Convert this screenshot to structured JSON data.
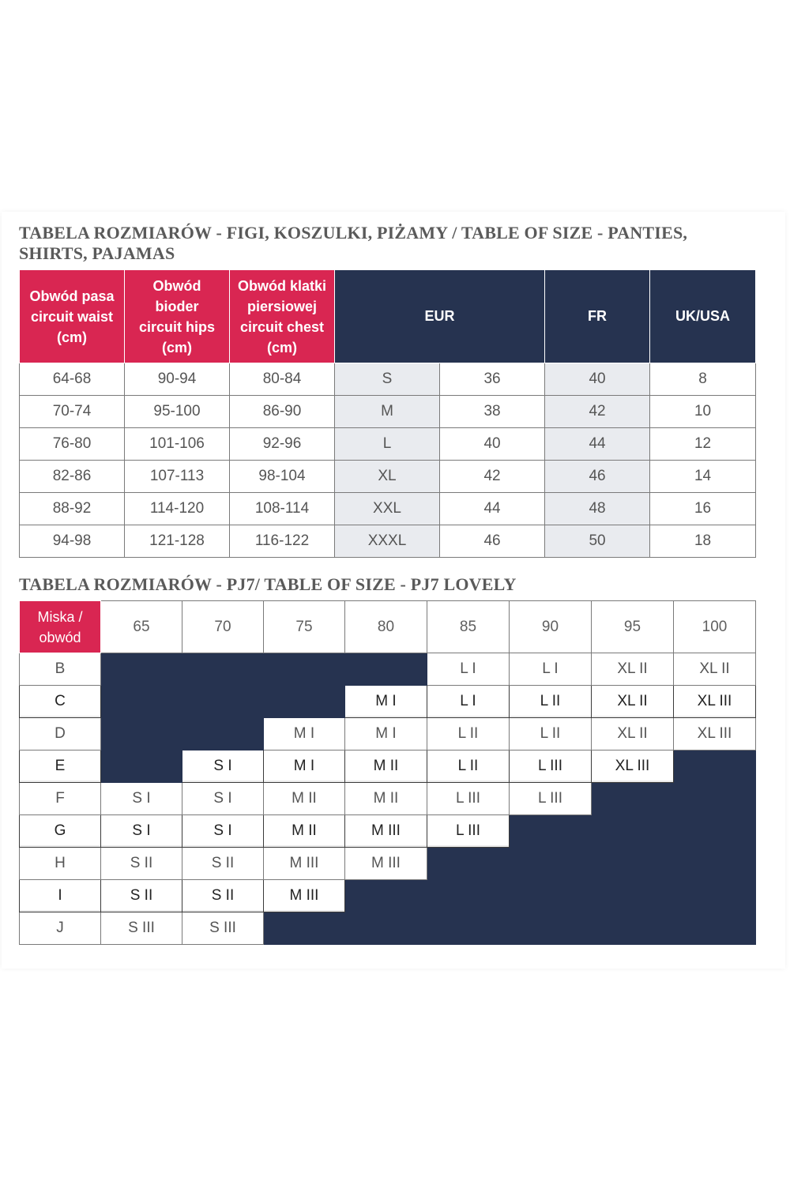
{
  "table1": {
    "title": "TABELA ROZMIARÓW - FIGI, KOSZULKI, PIŻAMY / TABLE OF SIZE - PANTIES, SHIRTS, PAJAMAS",
    "headers": {
      "waist": [
        "Obwód pasa",
        "circuit waist",
        "(cm)"
      ],
      "hips": [
        "Obwód",
        "bioder",
        "circuit hips",
        "(cm)"
      ],
      "chest": [
        "Obwód klatki",
        "piersiowej",
        "circuit chest",
        "(cm)"
      ],
      "eur": "EUR",
      "fr": "FR",
      "ukusa": "UK/USA"
    },
    "rows": [
      [
        "64-68",
        "90-94",
        "80-84",
        "S",
        "36",
        "40",
        "8"
      ],
      [
        "70-74",
        "95-100",
        "86-90",
        "M",
        "38",
        "42",
        "10"
      ],
      [
        "76-80",
        "101-106",
        "92-96",
        "L",
        "40",
        "44",
        "12"
      ],
      [
        "82-86",
        "107-113",
        "98-104",
        "XL",
        "42",
        "46",
        "14"
      ],
      [
        "88-92",
        "114-120",
        "108-114",
        "XXL",
        "44",
        "48",
        "16"
      ],
      [
        "94-98",
        "121-128",
        "116-122",
        "XXXL",
        "46",
        "50",
        "18"
      ]
    ]
  },
  "table2": {
    "title": "TABELA ROZMIARÓW - PJ7/ TABLE OF SIZE - PJ7 LOVELY",
    "corner": [
      "Miska /",
      "obwód"
    ],
    "columns": [
      "65",
      "70",
      "75",
      "80",
      "85",
      "90",
      "95",
      "100"
    ],
    "rows": [
      {
        "label": "B",
        "cells": [
          null,
          null,
          null,
          null,
          "L I",
          "L I",
          "XL II",
          "XL II"
        ]
      },
      {
        "label": "C",
        "cells": [
          null,
          null,
          null,
          "M I",
          "L I",
          "L II",
          "XL II",
          "XL III"
        ]
      },
      {
        "label": "D",
        "cells": [
          null,
          null,
          "M I",
          "M I",
          "L II",
          "L II",
          "XL II",
          "XL III"
        ]
      },
      {
        "label": "E",
        "cells": [
          null,
          "S I",
          "M I",
          "M II",
          "L II",
          "L III",
          "XL III",
          null
        ]
      },
      {
        "label": "F",
        "cells": [
          "S I",
          "S I",
          "M II",
          "M II",
          "L III",
          "L III",
          null,
          null
        ]
      },
      {
        "label": "G",
        "cells": [
          "S I",
          "S I",
          "M II",
          "M III",
          "L III",
          null,
          null,
          null
        ]
      },
      {
        "label": "H",
        "cells": [
          "S II",
          "S II",
          "M III",
          "M III",
          null,
          null,
          null,
          null
        ]
      },
      {
        "label": "I",
        "cells": [
          "S II",
          "S II",
          "M III",
          null,
          null,
          null,
          null,
          null
        ]
      },
      {
        "label": "J",
        "cells": [
          "S III",
          "S III",
          null,
          null,
          null,
          null,
          null,
          null
        ]
      }
    ]
  },
  "colors": {
    "red": "#d92652",
    "navy": "#263350",
    "shade": "#e9ebef",
    "text": "#555555"
  }
}
